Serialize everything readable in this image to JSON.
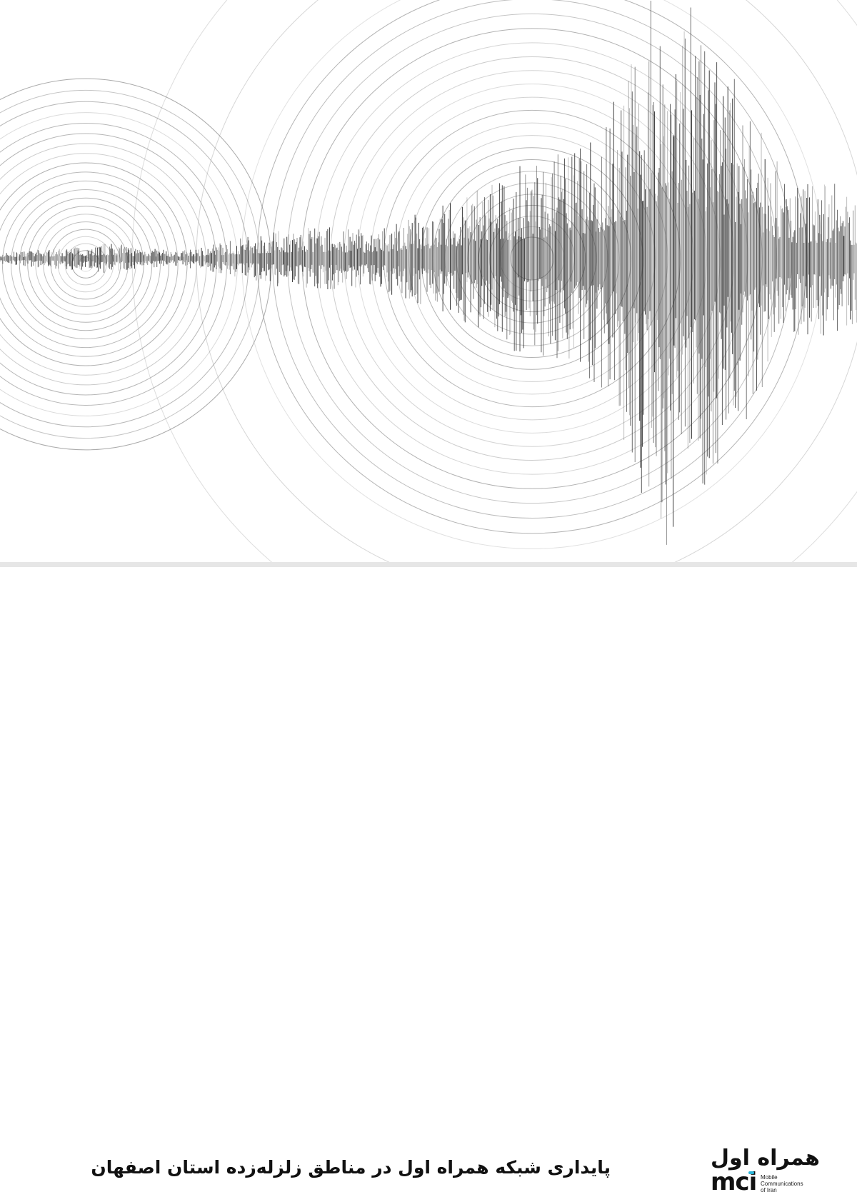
{
  "headline": "پایداری شبکه همراه اول در مناطق زلزله‌زده استان اصفهان",
  "logo": {
    "persian_name": "همراه اول",
    "brand": "mci",
    "subtitle_lines": [
      "Mobile",
      "Communications",
      "of Iran"
    ],
    "accent_color": "#2bb5d9"
  },
  "illustration": {
    "subject": "seismic-waveform-with-concentric-circles",
    "wave_color": "#2a2a2a",
    "ring_color": "#777777"
  }
}
